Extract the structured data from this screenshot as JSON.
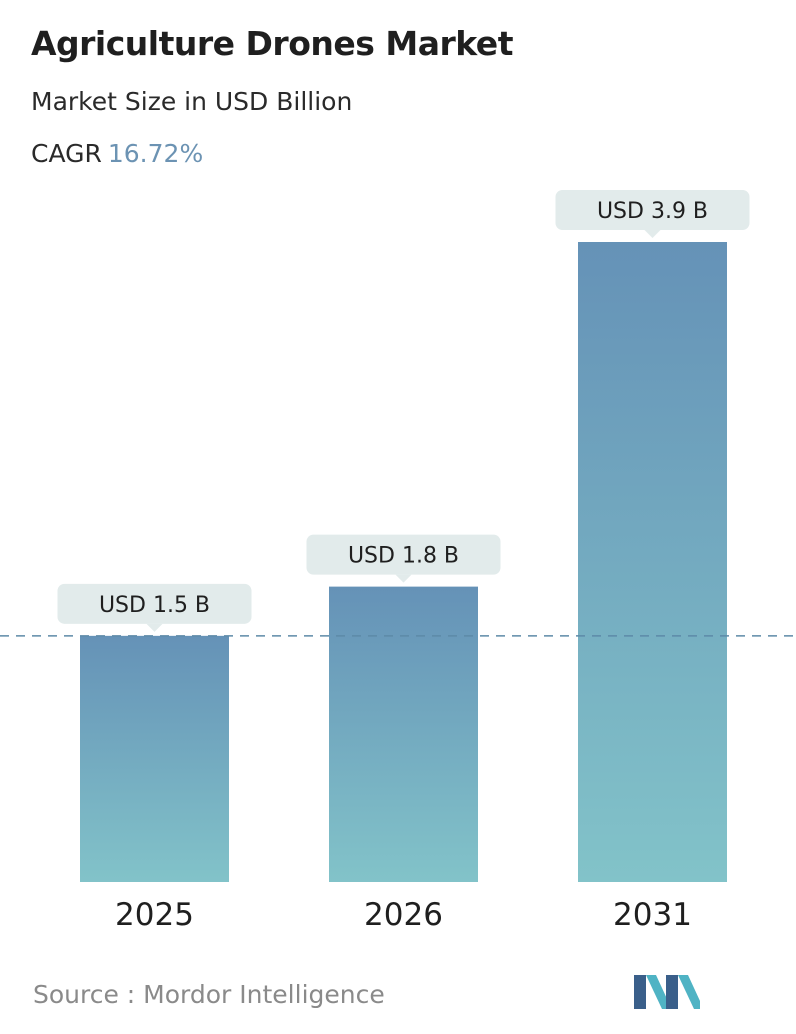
{
  "header": {
    "title": "Agriculture Drones Market",
    "subtitle": "Market Size in USD Billion",
    "cagr_label": "CAGR",
    "cagr_value": "16.72%"
  },
  "chart_data": {
    "type": "bar",
    "categories": [
      "2025",
      "2026",
      "2031"
    ],
    "values": [
      1.5,
      1.8,
      3.9
    ],
    "value_labels": [
      "USD 1.5 B",
      "USD 1.8 B",
      "USD 3.9 B"
    ],
    "title": "Agriculture Drones Market",
    "subtitle": "Market Size in USD Billion",
    "ylabel": "",
    "xlabel": "",
    "ylim": [
      0,
      3.9
    ],
    "grid": false,
    "reference_line": {
      "value": 1.5,
      "style": "dashed"
    },
    "bar_gradient": {
      "top": "#6592b7",
      "bottom": "#82c3c9"
    },
    "reference_line_color": "#5d8aa8"
  },
  "footer": {
    "source": "Source :  Mordor Intelligence",
    "logo": "mordor-intelligence-logo"
  },
  "colors": {
    "title": "#1f1f1f",
    "accent": "#6c93b3",
    "label_bg": "#e2ebeb",
    "source": "#8a8a8a"
  }
}
